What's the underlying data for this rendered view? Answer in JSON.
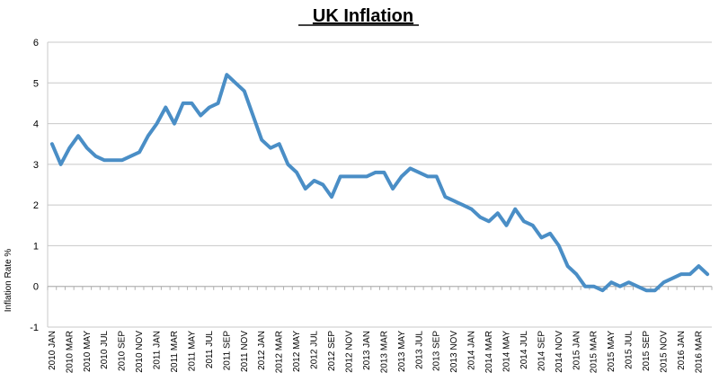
{
  "chart_data": {
    "type": "line",
    "title": "UK Inflation",
    "xlabel": "",
    "ylabel": "Inflation Rate %",
    "ylim": [
      -1,
      6
    ],
    "yticks": [
      "-1",
      "0",
      "1",
      "2",
      "3",
      "4",
      "5",
      "6"
    ],
    "grid": "horizontal",
    "legend": "none",
    "line_color": "#4a8ec6",
    "x": [
      "2010 JAN",
      "2010 FEB",
      "2010 MAR",
      "2010 APR",
      "2010 MAY",
      "2010 JUN",
      "2010 JUL",
      "2010 AUG",
      "2010 SEP",
      "2010 OCT",
      "2010 NOV",
      "2010 DEC",
      "2011 JAN",
      "2011 FEB",
      "2011 MAR",
      "2011 APR",
      "2011 MAY",
      "2011 JUN",
      "2011 JUL",
      "2011 AUG",
      "2011 SEP",
      "2011 OCT",
      "2011 NOV",
      "2011 DEC",
      "2012 JAN",
      "2012 FEB",
      "2012 MAR",
      "2012 APR",
      "2012 MAY",
      "2012 JUN",
      "2012 JUL",
      "2012 AUG",
      "2012 SEP",
      "2012 OCT",
      "2012 NOV",
      "2012 DEC",
      "2013 JAN",
      "2013 FEB",
      "2013 MAR",
      "2013 APR",
      "2013 MAY",
      "2013 JUN",
      "2013 JUL",
      "2013 AUG",
      "2013 SEP",
      "2013 OCT",
      "2013 NOV",
      "2013 DEC",
      "2014 JAN",
      "2014 FEB",
      "2014 MAR",
      "2014 APR",
      "2014 MAY",
      "2014 JUN",
      "2014 JUL",
      "2014 AUG",
      "2014 SEP",
      "2014 OCT",
      "2014 NOV",
      "2014 DEC",
      "2015 JAN",
      "2015 FEB",
      "2015 MAR",
      "2015 APR",
      "2015 MAY",
      "2015 JUN",
      "2015 JUL",
      "2015 AUG",
      "2015 SEP",
      "2015 OCT",
      "2015 NOV",
      "2015 DEC",
      "2016 JAN",
      "2016 FEB",
      "2016 MAR",
      "2016 APR"
    ],
    "xtick_labels": [
      "2010 JAN",
      "2010 MAR",
      "2010 MAY",
      "2010 JUL",
      "2010 SEP",
      "2010 NOV",
      "2011 JAN",
      "2011 MAR",
      "2011 MAY",
      "2011 JUL",
      "2011 SEP",
      "2011 NOV",
      "2012 JAN",
      "2012 MAR",
      "2012 MAY",
      "2012 JUL",
      "2012 SEP",
      "2012 NOV",
      "2013 JAN",
      "2013 MAR",
      "2013 MAY",
      "2013 JUL",
      "2013 SEP",
      "2013 NOV",
      "2014 JAN",
      "2014 MAR",
      "2014 MAY",
      "2014 JUL",
      "2014 SEP",
      "2014 NOV",
      "2015 JAN",
      "2015 MAR",
      "2015 MAY",
      "2015 JUL",
      "2015 SEP",
      "2015 NOV",
      "2016 JAN",
      "2016 MAR"
    ],
    "series": [
      {
        "name": "",
        "values": [
          3.5,
          3.0,
          3.4,
          3.7,
          3.4,
          3.2,
          3.1,
          3.1,
          3.1,
          3.2,
          3.3,
          3.7,
          4.0,
          4.4,
          4.0,
          4.5,
          4.5,
          4.2,
          4.4,
          4.5,
          5.2,
          5.0,
          4.8,
          4.2,
          3.6,
          3.4,
          3.5,
          3.0,
          2.8,
          2.4,
          2.6,
          2.5,
          2.2,
          2.7,
          2.7,
          2.7,
          2.7,
          2.8,
          2.8,
          2.4,
          2.7,
          2.9,
          2.8,
          2.7,
          2.7,
          2.2,
          2.1,
          2.0,
          1.9,
          1.7,
          1.6,
          1.8,
          1.5,
          1.9,
          1.6,
          1.5,
          1.2,
          1.3,
          1.0,
          0.5,
          0.3,
          0.0,
          0.0,
          -0.1,
          0.1,
          0.0,
          0.1,
          0.0,
          -0.1,
          -0.1,
          0.1,
          0.2,
          0.3,
          0.3,
          0.5,
          0.3
        ]
      }
    ]
  }
}
